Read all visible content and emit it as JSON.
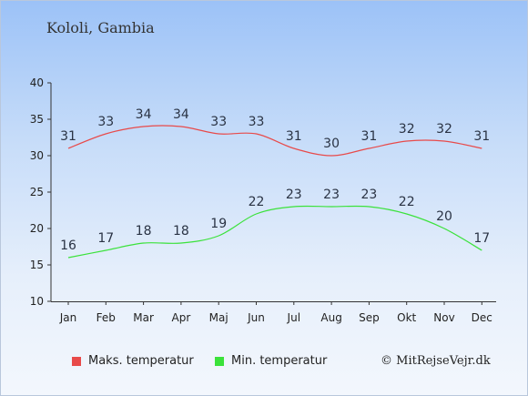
{
  "location": "Kololi, Gambia",
  "credit": "© MitRejseVejr.dk",
  "colors": {
    "max": "#e84a4a",
    "min": "#3be23b"
  },
  "chart_data": {
    "type": "line",
    "categories": [
      "Jan",
      "Feb",
      "Mar",
      "Apr",
      "Maj",
      "Jun",
      "Jul",
      "Aug",
      "Sep",
      "Okt",
      "Nov",
      "Dec"
    ],
    "ylim": [
      10,
      40
    ],
    "yticks": [
      10,
      15,
      20,
      25,
      30,
      35,
      40
    ],
    "grid": false,
    "legend_position": "bottom-left",
    "series": [
      {
        "name": "Maks. temperatur",
        "values": [
          31,
          33,
          34,
          34,
          33,
          33,
          31,
          30,
          31,
          32,
          32,
          31
        ]
      },
      {
        "name": "Min. temperatur",
        "values": [
          16,
          17,
          18,
          18,
          19,
          22,
          23,
          23,
          23,
          22,
          20,
          17
        ]
      }
    ]
  }
}
